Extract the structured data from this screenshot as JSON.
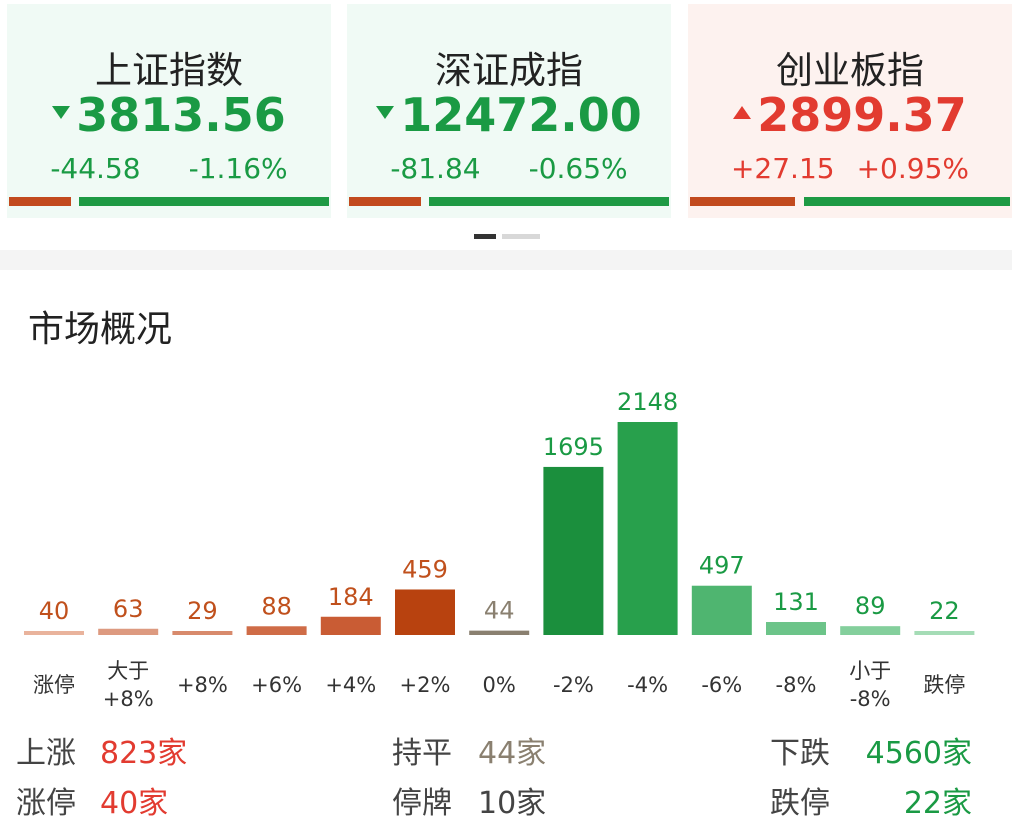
{
  "indices": [
    {
      "name": "上证指数",
      "value": "3813.56",
      "change": "-44.58",
      "pct": "-1.16%",
      "direction": "down"
    },
    {
      "name": "深证成指",
      "value": "12472.00",
      "change": "-81.84",
      "pct": "-0.65%",
      "direction": "down"
    },
    {
      "name": "创业板指",
      "value": "2899.37",
      "change": "+27.15",
      "pct": "+0.95%",
      "direction": "up"
    }
  ],
  "section_title": "市场概况",
  "chart_data": {
    "type": "bar",
    "categories": [
      "涨停",
      "大于\n+8%",
      "+8%",
      "+6%",
      "+4%",
      "+2%",
      "0%",
      "-2%",
      "-4%",
      "-6%",
      "-8%",
      "小于\n-8%",
      "跌停"
    ],
    "values": [
      40,
      63,
      29,
      88,
      184,
      459,
      44,
      1695,
      2148,
      497,
      131,
      89,
      22
    ],
    "bar_colors": [
      "#e9b39c",
      "#dd9a80",
      "#d88a6c",
      "#cf6c47",
      "#c95c34",
      "#b8420f",
      "#8a8070",
      "#1b8f3d",
      "#28a04c",
      "#4fb570",
      "#6cc489",
      "#84cf9c",
      "#a5dcb6"
    ],
    "label_colors": [
      "#c0501c",
      "#c0501c",
      "#c0501c",
      "#c0501c",
      "#c0501c",
      "#c0501c",
      "#8a8070",
      "#1a9a44",
      "#1a9a44",
      "#1a9a44",
      "#1a9a44",
      "#1a9a44",
      "#1a9a44"
    ]
  },
  "stats": {
    "up": {
      "label": "上涨",
      "value": "823家"
    },
    "flat": {
      "label": "持平",
      "value": "44家"
    },
    "down": {
      "label": "下跌",
      "value": "4560家"
    },
    "limit_up": {
      "label": "涨停",
      "value": "40家"
    },
    "suspended": {
      "label": "停牌",
      "value": "10家"
    },
    "limit_down": {
      "label": "跌停",
      "value": "22家"
    }
  },
  "colors": {
    "red": "#e23b30",
    "green": "#1a9a44",
    "grey": "#8a8070"
  }
}
